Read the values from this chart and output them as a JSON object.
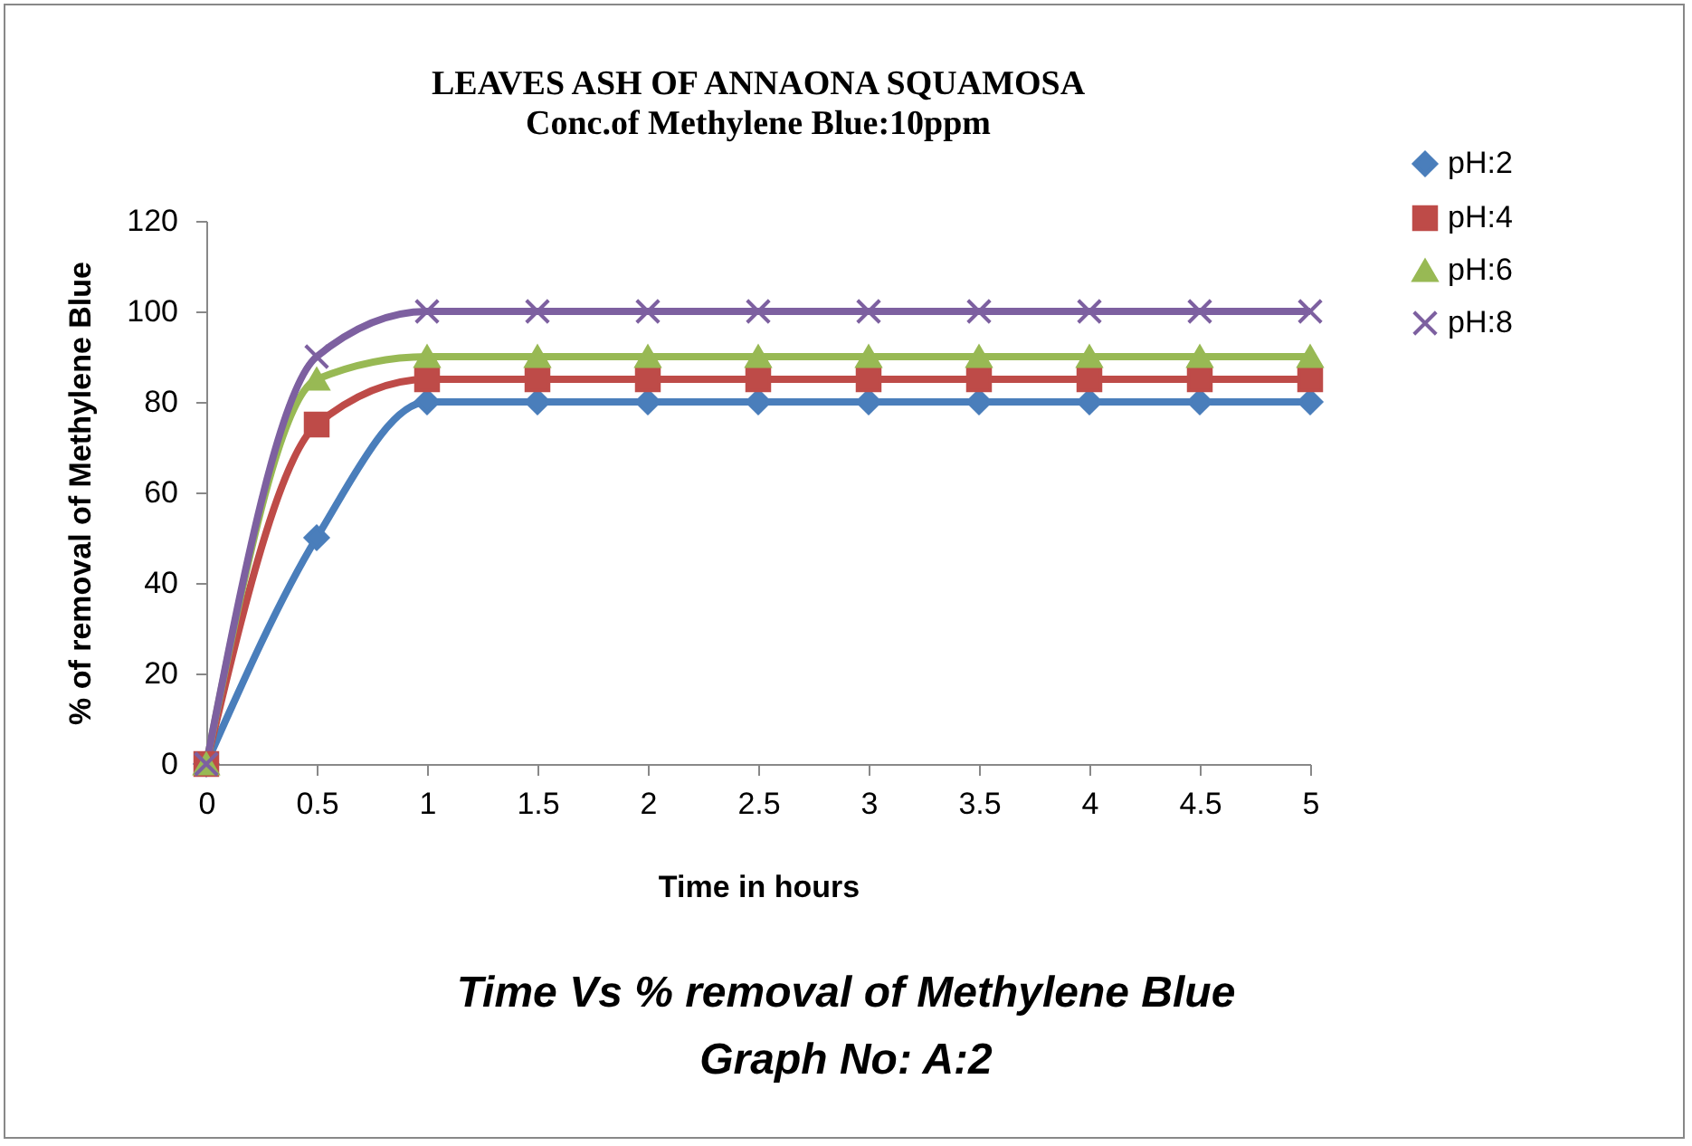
{
  "chart_data": {
    "type": "line",
    "title": "LEAVES ASH OF ANNAONA SQUAMOSA",
    "subtitle": "Conc.of Methylene Blue:10ppm",
    "xlabel": "Time in hours",
    "ylabel": "% of removal of Methylene Blue",
    "annotations": [
      "Time Vs % removal of Methylene Blue",
      "Graph No: A:2"
    ],
    "categories": [
      "0",
      "0.5",
      "1",
      "1.5",
      "2",
      "2.5",
      "3",
      "3.5",
      "4",
      "4.5",
      "5"
    ],
    "series": [
      {
        "name": "pH:2",
        "color": "#4a7ebb",
        "marker": "diamond",
        "values": [
          0,
          50,
          80,
          80,
          80,
          80,
          80,
          80,
          80,
          80,
          80
        ]
      },
      {
        "name": "pH:4",
        "color": "#be4b48",
        "marker": "square",
        "values": [
          0,
          75,
          85,
          85,
          85,
          85,
          85,
          85,
          85,
          85,
          85
        ]
      },
      {
        "name": "pH:6",
        "color": "#98b954",
        "marker": "triangle",
        "values": [
          0,
          85,
          90,
          90,
          90,
          90,
          90,
          90,
          90,
          90,
          90
        ]
      },
      {
        "name": "pH:8",
        "color": "#7d60a0",
        "marker": "cross",
        "values": [
          0,
          90,
          100,
          100,
          100,
          100,
          100,
          100,
          100,
          100,
          100
        ]
      }
    ],
    "ylim": [
      0,
      120
    ],
    "yticks": [
      0,
      20,
      40,
      60,
      80,
      100,
      120
    ],
    "grid": false,
    "legend": "top right",
    "line_style": "solid"
  }
}
